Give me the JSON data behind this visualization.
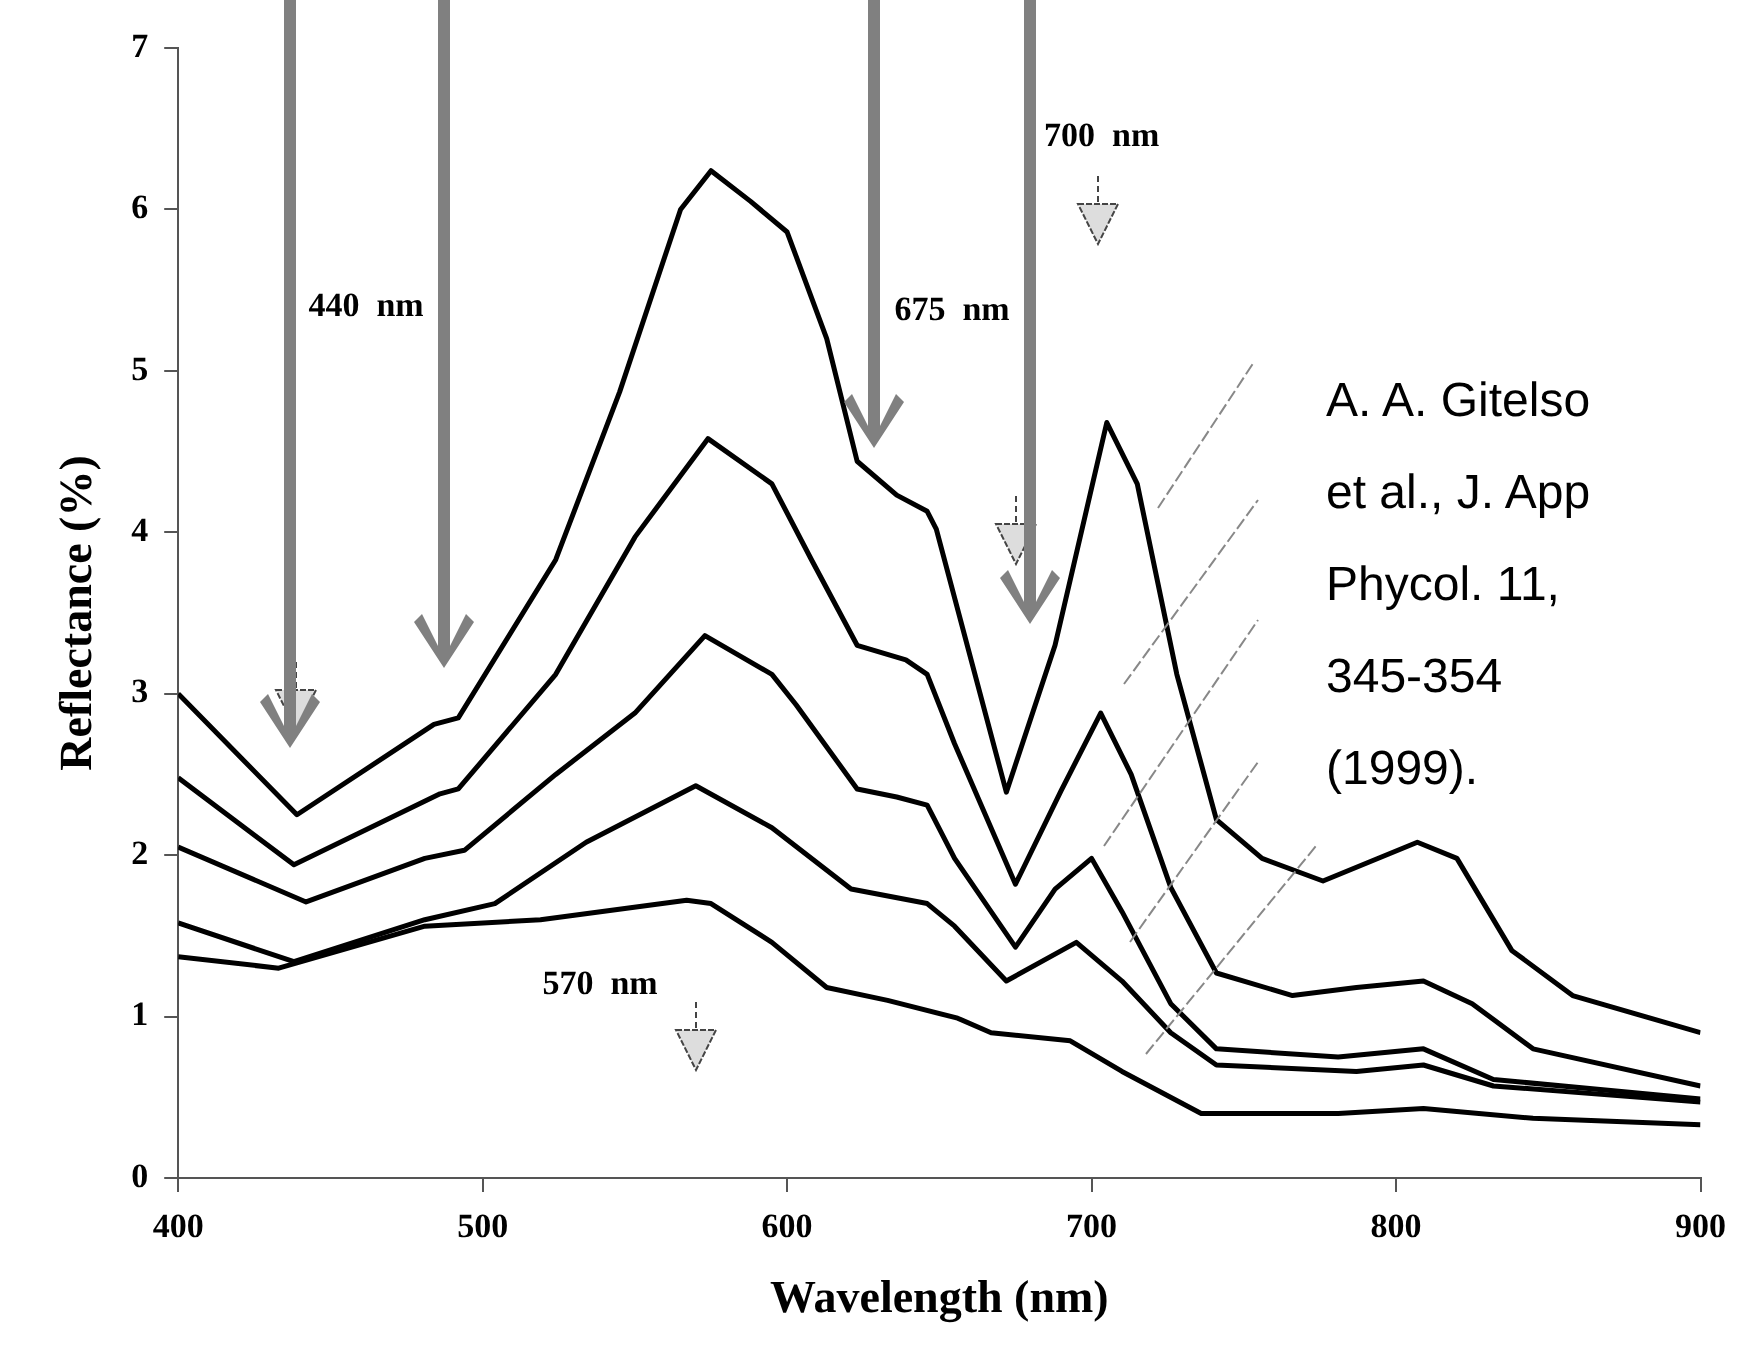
{
  "chart_data": {
    "type": "line",
    "xlabel": "Wavelength (nm)",
    "ylabel": "Reflectance (%)",
    "xlim": [
      400,
      900
    ],
    "ylim": [
      0,
      7
    ],
    "xticks": [
      400,
      500,
      600,
      700,
      800,
      900
    ],
    "yticks": [
      0,
      1,
      2,
      3,
      4,
      5,
      6,
      7
    ],
    "marker": "none",
    "line_style": "solid",
    "series": [
      {
        "color": "#000000",
        "x": [
          400,
          439,
          484,
          492,
          524,
          545,
          565,
          575,
          588,
          600,
          613,
          623,
          636,
          646,
          649,
          672,
          688,
          705,
          715,
          728,
          741,
          756,
          776,
          807,
          820,
          838,
          858,
          900
        ],
        "values": [
          3.0,
          2.25,
          2.81,
          2.85,
          3.83,
          4.87,
          6.0,
          6.24,
          6.05,
          5.86,
          5.2,
          4.44,
          4.23,
          4.13,
          4.02,
          2.39,
          3.3,
          4.68,
          4.3,
          3.12,
          2.22,
          1.98,
          1.84,
          2.08,
          1.98,
          1.41,
          1.13,
          0.9
        ]
      },
      {
        "color": "#000000",
        "x": [
          400,
          438,
          486,
          492,
          524,
          550,
          574,
          595,
          608,
          623,
          639,
          646,
          655,
          675,
          690,
          703,
          713,
          726,
          741,
          766,
          787,
          809,
          825,
          845,
          900
        ],
        "values": [
          2.48,
          1.94,
          2.38,
          2.41,
          3.12,
          3.97,
          4.58,
          4.3,
          3.83,
          3.3,
          3.21,
          3.12,
          2.69,
          1.82,
          2.4,
          2.88,
          2.5,
          1.8,
          1.27,
          1.13,
          1.18,
          1.22,
          1.08,
          0.8,
          0.57
        ]
      },
      {
        "color": "#000000",
        "x": [
          400,
          442,
          481,
          494,
          524,
          550,
          573,
          595,
          603,
          623,
          636,
          646,
          655,
          675,
          688,
          700,
          710,
          726,
          741,
          781,
          809,
          832,
          900
        ],
        "values": [
          2.05,
          1.71,
          1.98,
          2.03,
          2.5,
          2.88,
          3.36,
          3.12,
          2.93,
          2.41,
          2.36,
          2.31,
          1.98,
          1.43,
          1.79,
          1.98,
          1.65,
          1.08,
          0.8,
          0.75,
          0.8,
          0.61,
          0.49
        ]
      },
      {
        "color": "#000000",
        "x": [
          400,
          438,
          481,
          504,
          534,
          570,
          595,
          621,
          646,
          655,
          672,
          695,
          710,
          726,
          741,
          787,
          809,
          832,
          900
        ],
        "values": [
          1.58,
          1.34,
          1.6,
          1.7,
          2.08,
          2.43,
          2.17,
          1.79,
          1.7,
          1.56,
          1.22,
          1.46,
          1.22,
          0.9,
          0.7,
          0.66,
          0.7,
          0.57,
          0.47
        ]
      },
      {
        "color": "#000000",
        "x": [
          400,
          433,
          481,
          519,
          567,
          575,
          595,
          613,
          633,
          656,
          667,
          693,
          710,
          736,
          781,
          809,
          845,
          900
        ],
        "values": [
          1.37,
          1.3,
          1.56,
          1.6,
          1.72,
          1.7,
          1.46,
          1.18,
          1.1,
          0.99,
          0.9,
          0.85,
          0.66,
          0.4,
          0.4,
          0.43,
          0.37,
          0.33
        ]
      }
    ],
    "annotations": [
      "440  nm",
      "570  nm",
      "675  nm",
      "700  nm",
      "A. A. Gitelso\net al., J. App\nPhycol. 11,\n345-354\n(1999)."
    ]
  }
}
